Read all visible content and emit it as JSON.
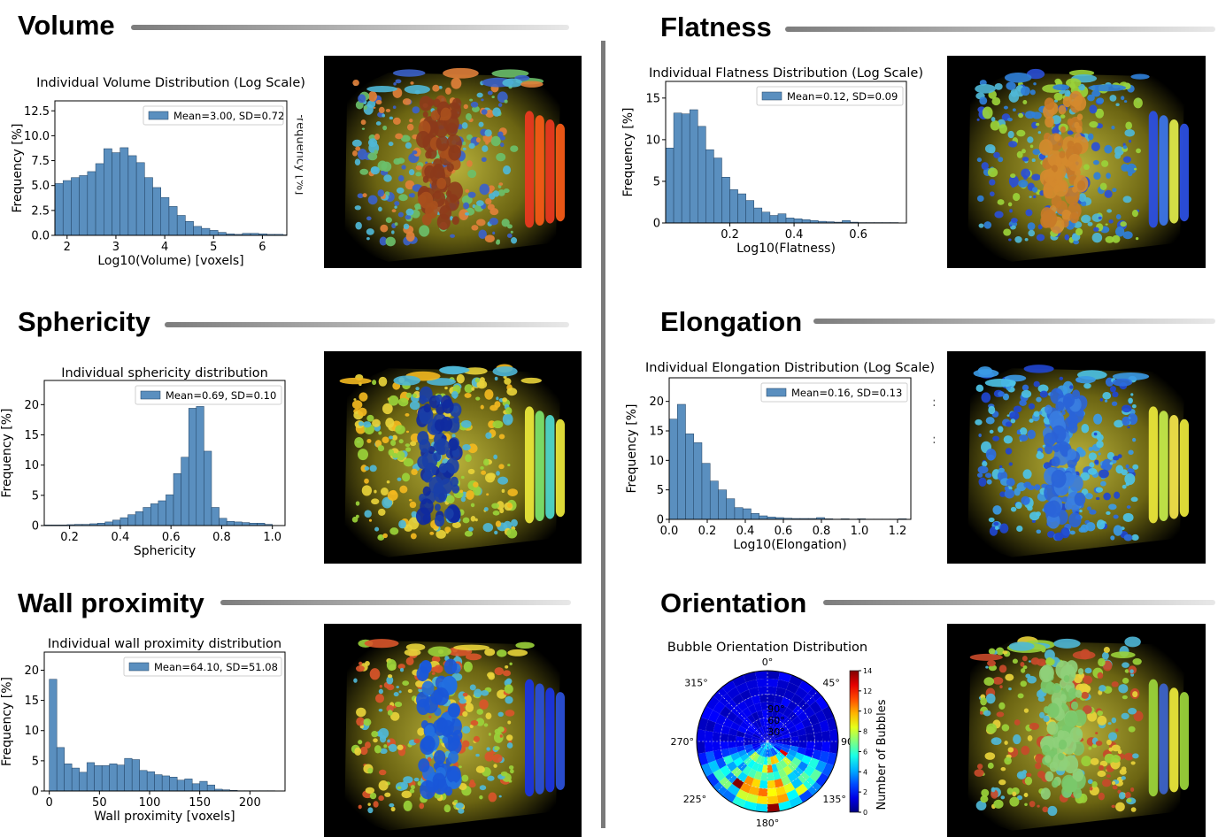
{
  "sections": {
    "volume": "Volume",
    "flatness": "Flatness",
    "sphericity": "Sphericity",
    "elongation": "Elongation",
    "wall_proximity": "Wall proximity",
    "orientation": "Orientation"
  },
  "side_fragments": {
    "volume_cut": "Frequency [%]",
    "elong_dots": ":"
  },
  "chart_data": [
    {
      "id": "volume",
      "type": "bar",
      "title": "Individual Volume Distribution (Log Scale)",
      "xlabel": "Log10(Volume) [voxels]",
      "ylabel": "Frequency [%]",
      "legend": "Mean=3.00, SD=0.72",
      "legend_position": "top-right",
      "xlim": [
        1.75,
        6.5
      ],
      "ylim": [
        0,
        13.5
      ],
      "xticks": [
        2,
        3,
        4,
        5,
        6
      ],
      "xtick_labels": [
        "2",
        "3",
        "4",
        "5",
        "6"
      ],
      "yticks": [
        0,
        2.5,
        5,
        7.5,
        10,
        12.5
      ],
      "ytick_labels": [
        "0.0",
        "2.5",
        "5.0",
        "7.5",
        "10.0",
        "12.5"
      ],
      "bin_start": 1.75,
      "bin_width": 0.167,
      "values": [
        5.2,
        5.5,
        5.8,
        6.0,
        6.4,
        7.2,
        8.7,
        8.3,
        8.8,
        8.0,
        7.3,
        5.8,
        4.8,
        3.8,
        2.9,
        2.0,
        1.4,
        0.9,
        0.7,
        0.5,
        0.3,
        0.15,
        0.1,
        0.2,
        0.2,
        0.15,
        0.1,
        0.1,
        0.05
      ]
    },
    {
      "id": "flatness",
      "type": "bar",
      "title": "Individual Flatness Distribution (Log Scale)",
      "xlabel": "Log10(Flatness)",
      "ylabel": "Frequency [%]",
      "legend": "Mean=0.12, SD=0.09",
      "legend_position": "top-right",
      "xlim": [
        0.0,
        0.75
      ],
      "ylim": [
        0,
        17
      ],
      "xticks": [
        0.2,
        0.4,
        0.6
      ],
      "xtick_labels": [
        "0.2",
        "0.4",
        "0.6"
      ],
      "yticks": [
        0,
        5,
        10,
        15
      ],
      "ytick_labels": [
        "0",
        "5",
        "10",
        "15"
      ],
      "bin_start": 0.0,
      "bin_width": 0.025,
      "values": [
        9.0,
        13.2,
        13.1,
        13.6,
        11.6,
        8.8,
        7.8,
        5.5,
        4.0,
        3.5,
        2.7,
        1.8,
        1.3,
        0.9,
        1.1,
        0.6,
        0.5,
        0.4,
        0.3,
        0.2,
        0.15,
        0.1,
        0.3,
        0.1,
        0.05,
        0.05,
        0.05,
        0.05,
        0.05
      ]
    },
    {
      "id": "sphericity",
      "type": "bar",
      "title": "Individual sphericity distribution",
      "xlabel": "Sphericity",
      "ylabel": "Frequency [%]",
      "legend": "Mean=0.69, SD=0.10",
      "legend_position": "top-right",
      "xlim": [
        0.1,
        1.05
      ],
      "ylim": [
        0,
        24
      ],
      "xticks": [
        0.2,
        0.4,
        0.6,
        0.8,
        1.0
      ],
      "xtick_labels": [
        "0.2",
        "0.4",
        "0.6",
        "0.8",
        "1.0"
      ],
      "yticks": [
        0,
        5,
        10,
        15,
        20
      ],
      "ytick_labels": [
        "0",
        "5",
        "10",
        "15",
        "20"
      ],
      "bin_start": 0.1,
      "bin_width": 0.03,
      "values": [
        0.1,
        0.1,
        0.1,
        0.15,
        0.2,
        0.2,
        0.3,
        0.4,
        0.6,
        0.9,
        1.3,
        1.8,
        2.3,
        3.0,
        3.6,
        4.1,
        5.1,
        8.6,
        11.3,
        19.4,
        19.7,
        12.3,
        3.0,
        1.2,
        0.7,
        0.6,
        0.5,
        0.4,
        0.4,
        0.2
      ]
    },
    {
      "id": "elongation",
      "type": "bar",
      "title": "Individual Elongation Distribution (Log Scale)",
      "xlabel": "Log10(Elongation)",
      "ylabel": "Frequency [%]",
      "legend": "Mean=0.16, SD=0.13",
      "legend_position": "top-right",
      "xlim": [
        0.0,
        1.27
      ],
      "ylim": [
        0,
        24
      ],
      "xticks": [
        0.0,
        0.2,
        0.4,
        0.6,
        0.8,
        1.0,
        1.2
      ],
      "xtick_labels": [
        "0.0",
        "0.2",
        "0.4",
        "0.6",
        "0.8",
        "1.0",
        "1.2"
      ],
      "yticks": [
        0,
        5,
        10,
        15,
        20
      ],
      "ytick_labels": [
        "0",
        "5",
        "10",
        "15",
        "20"
      ],
      "bin_start": 0.0,
      "bin_width": 0.043,
      "values": [
        17.0,
        19.5,
        14.5,
        13.0,
        9.5,
        6.5,
        5.0,
        3.5,
        2.0,
        1.8,
        1.0,
        0.6,
        0.4,
        0.3,
        0.2,
        0.15,
        0.15,
        0.15,
        0.3,
        0.1,
        0.05,
        0.1,
        0.05,
        0.1,
        0.05,
        0.05,
        0.05,
        0.05,
        0.1
      ]
    },
    {
      "id": "wall_proximity",
      "type": "bar",
      "title": "Individual wall proximity distribution",
      "xlabel": "Wall proximity [voxels]",
      "ylabel": "Frequency [%]",
      "legend": "Mean=64.10, SD=51.08",
      "legend_position": "top-right",
      "xlim": [
        -5,
        235
      ],
      "ylim": [
        0,
        23
      ],
      "xticks": [
        0,
        50,
        100,
        150,
        200
      ],
      "xtick_labels": [
        "0",
        "50",
        "100",
        "150",
        "200"
      ],
      "yticks": [
        0,
        5,
        10,
        15,
        20
      ],
      "ytick_labels": [
        "0",
        "5",
        "10",
        "15",
        "20"
      ],
      "bin_start": 0,
      "bin_width": 7.5,
      "values": [
        18.5,
        7.2,
        4.5,
        3.8,
        3.1,
        4.7,
        4.2,
        4.2,
        4.5,
        4.3,
        5.4,
        5.2,
        3.4,
        3.2,
        2.7,
        2.5,
        2.3,
        1.8,
        2.0,
        1.2,
        1.6,
        1.0,
        0.3,
        0.2,
        0.1,
        0.05,
        0.05,
        0.05,
        0.05,
        0.05
      ]
    },
    {
      "id": "orientation",
      "type": "heatmap",
      "title": "Bubble Orientation Distribution",
      "angular_labels": [
        "0°",
        "45°",
        "90°",
        "135°",
        "180°",
        "225°",
        "270°",
        "315°"
      ],
      "radial_labels": [
        "90°",
        "60°",
        "30°"
      ],
      "colorbar_label": "Number of Bubbles",
      "colorbar_ticks": [
        "0",
        "2",
        "4",
        "6",
        "8",
        "10",
        "12",
        "14"
      ],
      "colorbar_range": [
        0,
        14
      ]
    }
  ]
}
